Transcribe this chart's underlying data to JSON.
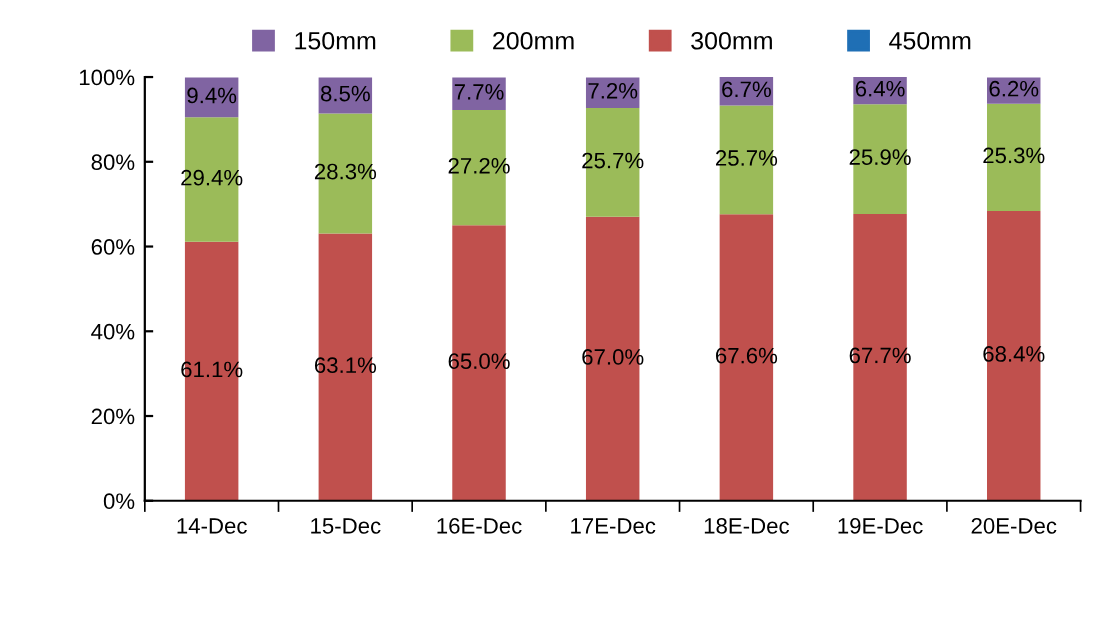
{
  "chart_data": {
    "type": "bar",
    "stacked": true,
    "categories": [
      "14-Dec",
      "15-Dec",
      "16E-Dec",
      "17E-Dec",
      "18E-Dec",
      "19E-Dec",
      "20E-Dec"
    ],
    "series": [
      {
        "name": "450mm",
        "color": "#1f6fb5",
        "values": [
          0,
          0,
          0,
          0,
          0,
          null,
          null
        ]
      },
      {
        "name": "300mm",
        "color": "#c0504d",
        "values": [
          61.1,
          63.1,
          65.0,
          67.0,
          67.6,
          67.7,
          68.4
        ],
        "value_labels": [
          "61.1%",
          "63.1%",
          "65.0%",
          "67.0%",
          "67.6%",
          "67.7%",
          "68.4%"
        ]
      },
      {
        "name": "200mm",
        "color": "#9bbb59",
        "values": [
          29.4,
          28.3,
          27.2,
          25.7,
          25.7,
          25.9,
          25.3
        ],
        "value_labels": [
          "29.4%",
          "28.3%",
          "27.2%",
          "25.7%",
          "25.7%",
          "25.9%",
          "25.3%"
        ]
      },
      {
        "name": "150mm",
        "color": "#8064a2",
        "values": [
          9.4,
          8.5,
          7.7,
          7.2,
          6.7,
          6.4,
          6.2
        ],
        "value_labels": [
          "9.4%",
          "8.5%",
          "7.7%",
          "7.2%",
          "6.7%",
          "6.4%",
          "6.2%"
        ]
      }
    ],
    "ylim": [
      0,
      100
    ],
    "yticks": [
      {
        "value": 0,
        "label": "0%"
      },
      {
        "value": 20,
        "label": "20%"
      },
      {
        "value": 40,
        "label": "40%"
      },
      {
        "value": 60,
        "label": "60%"
      },
      {
        "value": 80,
        "label": "80%"
      },
      {
        "value": 100,
        "label": "100%"
      }
    ],
    "legend": "top",
    "grid": false
  }
}
